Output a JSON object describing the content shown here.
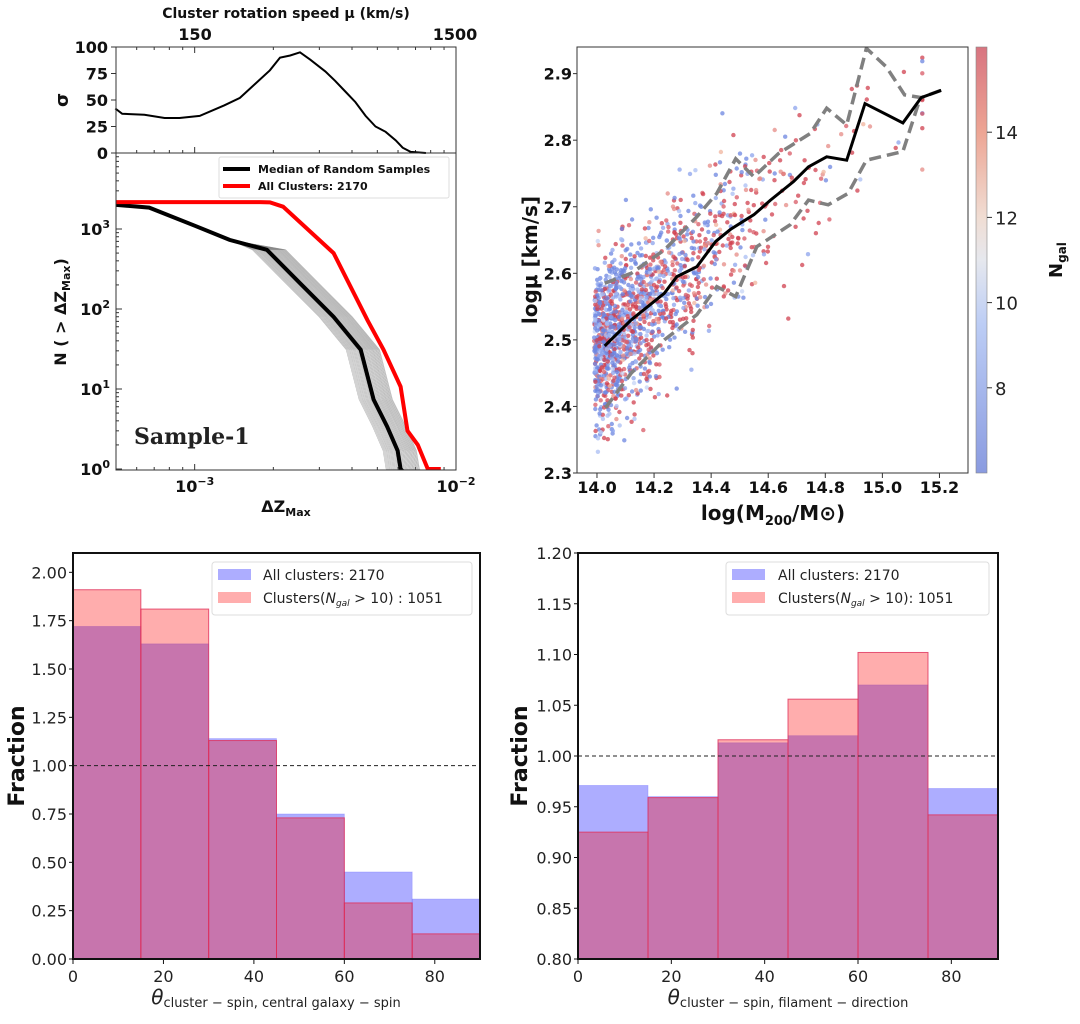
{
  "chart_data": [
    {
      "type": "line",
      "panel": "top-left",
      "top_axis": {
        "label": "Cluster rotation speed μ (km/s)",
        "tick_labels": [
          "150",
          "1500"
        ]
      },
      "sigma_subplot": {
        "ylabel": "σ",
        "ylim": [
          0,
          100
        ],
        "yticks": [
          "0",
          "25",
          "50",
          "75",
          "100"
        ],
        "x": [
          0.000497,
          0.000528,
          0.000642,
          0.000767,
          0.000875,
          0.001045,
          0.0013,
          0.00149,
          0.0017,
          0.00194,
          0.00212,
          0.00232,
          0.00253,
          0.00277,
          0.00316,
          0.00345,
          0.00377,
          0.00412,
          0.00451,
          0.00492,
          0.00538,
          0.00588,
          0.00625,
          0.00671,
          0.00767
        ],
        "y": [
          42,
          37,
          36,
          33,
          33,
          35,
          45,
          52,
          65,
          78,
          90,
          92,
          95,
          88,
          77,
          68,
          58,
          48,
          35,
          25,
          20,
          12,
          5,
          1,
          0
        ]
      },
      "xlabel": "ΔZ",
      "xlabel_sub": "Max",
      "ylabel_prefix": "N ( > ΔZ",
      "ylabel_sub": "Max",
      "ylabel_suffix": ")",
      "xscale": "log",
      "yscale": "log",
      "xlim": [
        0.0005,
        0.01
      ],
      "ylim": [
        1,
        8900
      ],
      "xticks": [
        {
          "base": "10",
          "exp": "−3"
        },
        {
          "base": "10",
          "exp": "−2"
        }
      ],
      "yticks": [
        {
          "base": "10",
          "exp": "0"
        },
        {
          "base": "10",
          "exp": "1"
        },
        {
          "base": "10",
          "exp": "2"
        },
        {
          "base": "10",
          "exp": "3"
        }
      ],
      "annotation": "Sample-1",
      "legend_position": "top-right",
      "series": [
        {
          "name": "Median of Random Samples",
          "color": "#000000",
          "x": [
            0.0005,
            0.00067,
            0.001,
            0.00136,
            0.00189,
            0.00253,
            0.0034,
            0.00432,
            0.00484,
            0.00545,
            0.00598,
            0.00614
          ],
          "y": [
            2000,
            1850,
            1100,
            730,
            550,
            210,
            80,
            31,
            7.4,
            3.4,
            1.7,
            1
          ]
        },
        {
          "name": "All Clusters: 2170",
          "color": "#ff0000",
          "x": [
            0.0005,
            0.00178,
            0.00194,
            0.00218,
            0.0034,
            0.00459,
            0.00528,
            0.00614,
            0.00652,
            0.00714,
            0.0078,
            0.00875
          ],
          "y": [
            2170,
            2170,
            2150,
            1900,
            500,
            72,
            31,
            10.7,
            3,
            2,
            1,
            1
          ]
        }
      ]
    },
    {
      "type": "scatter",
      "panel": "top-right",
      "xlabel_prefix": "log(M",
      "xlabel_sub": "200",
      "xlabel_suffix": "/M⊙)",
      "ylabel": "logμ [km/s]",
      "xlim": [
        13.93,
        15.3
      ],
      "ylim": [
        2.3,
        2.94
      ],
      "xticks": [
        "14.0",
        "14.2",
        "14.4",
        "14.6",
        "14.8",
        "15.0",
        "15.2"
      ],
      "yticks": [
        "2.3",
        "2.4",
        "2.5",
        "2.6",
        "2.7",
        "2.8",
        "2.9"
      ],
      "colorbar": {
        "label": "N",
        "label_sub": "gal",
        "range": [
          6,
          16
        ],
        "ticks": [
          "8",
          "10",
          "12",
          "14"
        ],
        "colormap": "coolwarm"
      },
      "median": {
        "color": "#000000",
        "x": [
          14.027,
          14.12,
          14.236,
          14.28,
          14.35,
          14.416,
          14.468,
          14.55,
          14.608,
          14.689,
          14.741,
          14.805,
          14.875,
          14.939,
          15.072,
          15.136,
          15.206
        ],
        "y": [
          2.491,
          2.53,
          2.57,
          2.595,
          2.61,
          2.648,
          2.666,
          2.688,
          2.71,
          2.738,
          2.76,
          2.775,
          2.77,
          2.855,
          2.826,
          2.864,
          2.875
        ]
      },
      "upper_bound": {
        "color": "#808080",
        "style": "dashed",
        "x": [
          14.027,
          14.12,
          14.236,
          14.35,
          14.42,
          14.486,
          14.55,
          14.636,
          14.747,
          14.805,
          14.875,
          14.944,
          15.014,
          15.078,
          15.136,
          15.206
        ],
        "y": [
          2.585,
          2.6,
          2.635,
          2.685,
          2.72,
          2.772,
          2.745,
          2.78,
          2.81,
          2.848,
          2.823,
          2.938,
          2.91,
          2.868,
          2.864,
          2.875
        ]
      },
      "lower_bound": {
        "color": "#808080",
        "style": "dashed",
        "x": [
          14.03,
          14.12,
          14.236,
          14.35,
          14.42,
          14.486,
          14.56,
          14.677,
          14.741,
          14.81,
          14.88,
          14.944,
          15.072,
          15.13
        ],
        "y": [
          2.398,
          2.45,
          2.5,
          2.538,
          2.58,
          2.565,
          2.64,
          2.673,
          2.71,
          2.703,
          2.72,
          2.77,
          2.783,
          2.86
        ]
      }
    },
    {
      "type": "bar",
      "panel": "bottom-left",
      "bin_edges": [
        0,
        15,
        30,
        45,
        60,
        75,
        90
      ],
      "xlim": [
        0,
        90
      ],
      "ylim": [
        0,
        2.1
      ],
      "xticks": [
        "0",
        "20",
        "40",
        "60",
        "80"
      ],
      "yticks": [
        "0.00",
        "0.25",
        "0.50",
        "0.75",
        "1.00",
        "1.25",
        "1.50",
        "1.75",
        "2.00"
      ],
      "ylabel": "Fraction",
      "xlabel_symbol": "θ",
      "xlabel_sub": "cluster − spin, central galaxy − spin",
      "reference_line": 1.0,
      "legend_position": "top-right",
      "series": [
        {
          "name": "All clusters: 2170",
          "color": "#0000ff",
          "values": [
            1.72,
            1.63,
            1.14,
            0.75,
            0.45,
            0.31
          ]
        },
        {
          "name_prefix": "Clusters(",
          "name_sym": "N",
          "name_sub": "gal",
          "name_suffix": " > 10) : 1051",
          "color": "#ff0000",
          "values": [
            1.91,
            1.81,
            1.13,
            0.73,
            0.29,
            0.13
          ]
        }
      ]
    },
    {
      "type": "bar",
      "panel": "bottom-right",
      "bin_edges": [
        0,
        15,
        30,
        45,
        60,
        75,
        90
      ],
      "xlim": [
        0,
        90
      ],
      "ylim": [
        0.8,
        1.2
      ],
      "xticks": [
        "0",
        "20",
        "40",
        "60",
        "80"
      ],
      "yticks": [
        "0.80",
        "0.85",
        "0.90",
        "0.95",
        "1.00",
        "1.05",
        "1.10",
        "1.15",
        "1.20"
      ],
      "ylabel": "Fraction",
      "xlabel_symbol": "θ",
      "xlabel_sub": "cluster − spin, filament − direction",
      "reference_line": 1.0,
      "legend_position": "top-right",
      "series": [
        {
          "name": "All clusters: 2170",
          "color": "#0000ff",
          "values": [
            0.971,
            0.96,
            1.013,
            1.02,
            1.07,
            0.968
          ]
        },
        {
          "name_prefix": "Clusters(",
          "name_sym": "N",
          "name_sub": "gal",
          "name_suffix": " > 10): 1051",
          "color": "#ff0000",
          "values": [
            0.925,
            0.959,
            1.016,
            1.056,
            1.102,
            0.942
          ]
        }
      ]
    }
  ]
}
